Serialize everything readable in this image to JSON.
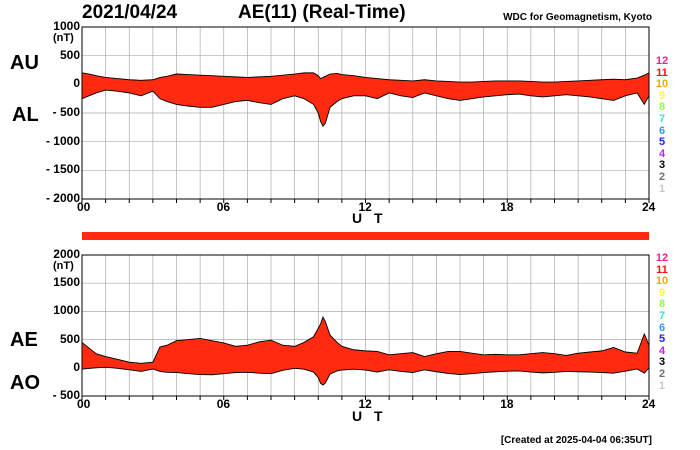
{
  "header": {
    "date": "2021/04/24",
    "title": "AE(11) (Real-Time)",
    "credit": "WDC for Geomagnetism, Kyoto",
    "created": "[Created at 2025-04-04 06:35UT]"
  },
  "colors": {
    "fill": "#ff2a10",
    "line": "#000000",
    "grid": "#aaaaaa",
    "bar": "#ff2a10"
  },
  "level_scale": {
    "labels": [
      "12",
      "11",
      "10",
      "9",
      "8",
      "7",
      "6",
      "5",
      "4",
      "3",
      "2",
      "1"
    ],
    "colors": [
      "#ff1c8c",
      "#ff1010",
      "#ffa500",
      "#ffff30",
      "#90ff40",
      "#40e0d0",
      "#2a9df4",
      "#2020ff",
      "#c020ff",
      "#000000",
      "#707070",
      "#c8c8c8"
    ]
  },
  "chart_data": [
    {
      "type": "area",
      "top_label": "AU",
      "bottom_label": "AL",
      "unit": "(nT)",
      "ylim": [
        -2000,
        1000
      ],
      "yticks": [
        "1000",
        "500",
        "0",
        "- 500",
        "- 1000",
        "- 1500",
        "- 2000"
      ],
      "xlim": [
        0,
        24
      ],
      "xticks": [
        "00",
        "06",
        "12",
        "18",
        "24"
      ],
      "xlabel": "U T",
      "x": [
        0,
        0.3,
        0.6,
        1,
        1.5,
        2,
        2.5,
        3,
        3.3,
        3.6,
        4,
        4.5,
        5,
        5.5,
        6,
        6.5,
        7,
        7.5,
        8,
        8.5,
        9,
        9.4,
        9.8,
        10,
        10.1,
        10.2,
        10.3,
        10.5,
        10.8,
        11,
        11.5,
        12,
        12.5,
        13,
        13.5,
        14,
        14.5,
        15,
        15.5,
        16,
        16.5,
        17,
        17.5,
        18,
        18.5,
        19,
        19.5,
        20,
        20.5,
        21,
        21.5,
        22,
        22.5,
        23,
        23.5,
        23.8,
        24
      ],
      "series": [
        {
          "name": "AU",
          "values": [
            200,
            180,
            150,
            120,
            100,
            80,
            70,
            80,
            120,
            140,
            180,
            170,
            160,
            150,
            140,
            130,
            120,
            130,
            140,
            160,
            180,
            200,
            200,
            150,
            100,
            120,
            140,
            180,
            190,
            170,
            150,
            120,
            100,
            80,
            70,
            60,
            80,
            60,
            50,
            40,
            40,
            50,
            60,
            60,
            60,
            50,
            40,
            40,
            50,
            60,
            70,
            80,
            90,
            80,
            110,
            160,
            200
          ]
        },
        {
          "name": "AL",
          "values": [
            -250,
            -200,
            -150,
            -100,
            -120,
            -150,
            -200,
            -120,
            -250,
            -300,
            -350,
            -380,
            -400,
            -400,
            -350,
            -300,
            -280,
            -320,
            -350,
            -250,
            -200,
            -250,
            -350,
            -500,
            -650,
            -730,
            -680,
            -400,
            -300,
            -250,
            -200,
            -200,
            -250,
            -150,
            -200,
            -230,
            -150,
            -200,
            -250,
            -280,
            -250,
            -220,
            -200,
            -180,
            -170,
            -200,
            -220,
            -200,
            -180,
            -200,
            -220,
            -250,
            -280,
            -200,
            -150,
            -350,
            -200
          ]
        }
      ]
    },
    {
      "type": "area",
      "top_label": "AE",
      "bottom_label": "AO",
      "unit": "(nT)",
      "ylim": [
        -500,
        2000
      ],
      "yticks": [
        "2000",
        "1500",
        "1000",
        "500",
        "0",
        "- 500"
      ],
      "xlim": [
        0,
        24
      ],
      "xticks": [
        "00",
        "06",
        "12",
        "18",
        "24"
      ],
      "xlabel": "U T",
      "x": [
        0,
        0.3,
        0.6,
        1,
        1.5,
        2,
        2.5,
        3,
        3.3,
        3.6,
        4,
        4.5,
        5,
        5.5,
        6,
        6.5,
        7,
        7.5,
        8,
        8.5,
        9,
        9.4,
        9.8,
        10,
        10.1,
        10.2,
        10.3,
        10.5,
        10.8,
        11,
        11.5,
        12,
        12.5,
        13,
        13.5,
        14,
        14.5,
        15,
        15.5,
        16,
        16.5,
        17,
        17.5,
        18,
        18.5,
        19,
        19.5,
        20,
        20.5,
        21,
        21.5,
        22,
        22.5,
        23,
        23.5,
        23.8,
        24
      ],
      "series": [
        {
          "name": "AE",
          "values": [
            450,
            350,
            250,
            200,
            150,
            100,
            80,
            100,
            370,
            400,
            480,
            500,
            520,
            480,
            440,
            380,
            400,
            460,
            490,
            400,
            380,
            450,
            550,
            700,
            780,
            900,
            820,
            580,
            450,
            380,
            320,
            300,
            290,
            230,
            250,
            270,
            200,
            250,
            290,
            290,
            260,
            230,
            240,
            230,
            230,
            250,
            270,
            250,
            220,
            260,
            280,
            300,
            360,
            280,
            260,
            600,
            400
          ]
        },
        {
          "name": "AO",
          "values": [
            -25,
            -10,
            0,
            10,
            -10,
            -35,
            -65,
            -20,
            -65,
            -80,
            -85,
            -105,
            -120,
            -125,
            -105,
            -85,
            -80,
            -95,
            -105,
            -45,
            -10,
            -25,
            -75,
            -175,
            -275,
            -305,
            -270,
            -110,
            -55,
            -40,
            -25,
            -40,
            -75,
            -35,
            -65,
            -85,
            -35,
            -70,
            -100,
            -120,
            -105,
            -85,
            -70,
            -60,
            -55,
            -75,
            -90,
            -80,
            -65,
            -70,
            -75,
            -85,
            -95,
            -60,
            -20,
            -95,
            0
          ]
        }
      ]
    }
  ]
}
